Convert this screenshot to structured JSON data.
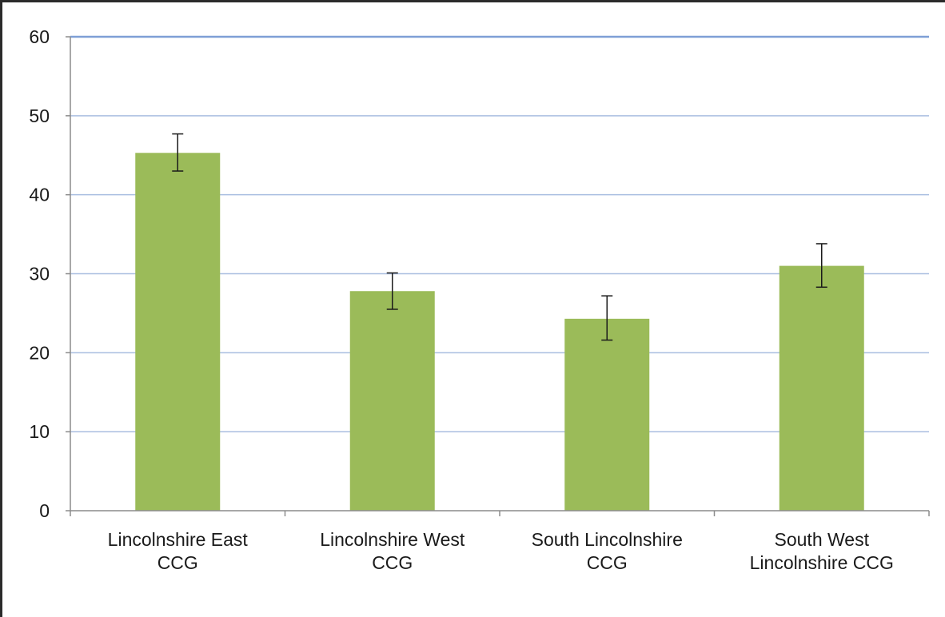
{
  "chart_data": {
    "type": "bar",
    "categories": [
      [
        "Lincolnshire East",
        "CCG"
      ],
      [
        "Lincolnshire West",
        "CCG"
      ],
      [
        "South Lincolnshire",
        "CCG"
      ],
      [
        "South West",
        "Lincolnshire CCG"
      ]
    ],
    "values": [
      45.3,
      27.8,
      24.3,
      31.0
    ],
    "error_low": [
      43.0,
      25.5,
      21.6,
      28.3
    ],
    "error_high": [
      47.7,
      30.1,
      27.2,
      33.8
    ],
    "yticks": [
      "0",
      "10",
      "20",
      "30",
      "40",
      "50",
      "60"
    ],
    "ylim": [
      0,
      60
    ],
    "grid": true,
    "title": "",
    "xlabel": "",
    "ylabel": "",
    "colors": {
      "bar": "#9bbb59",
      "grid": "#a9bee0",
      "grid_major": "#7f9fd6",
      "axis": "#8c8c8c",
      "error": "#1a1a1a"
    }
  }
}
